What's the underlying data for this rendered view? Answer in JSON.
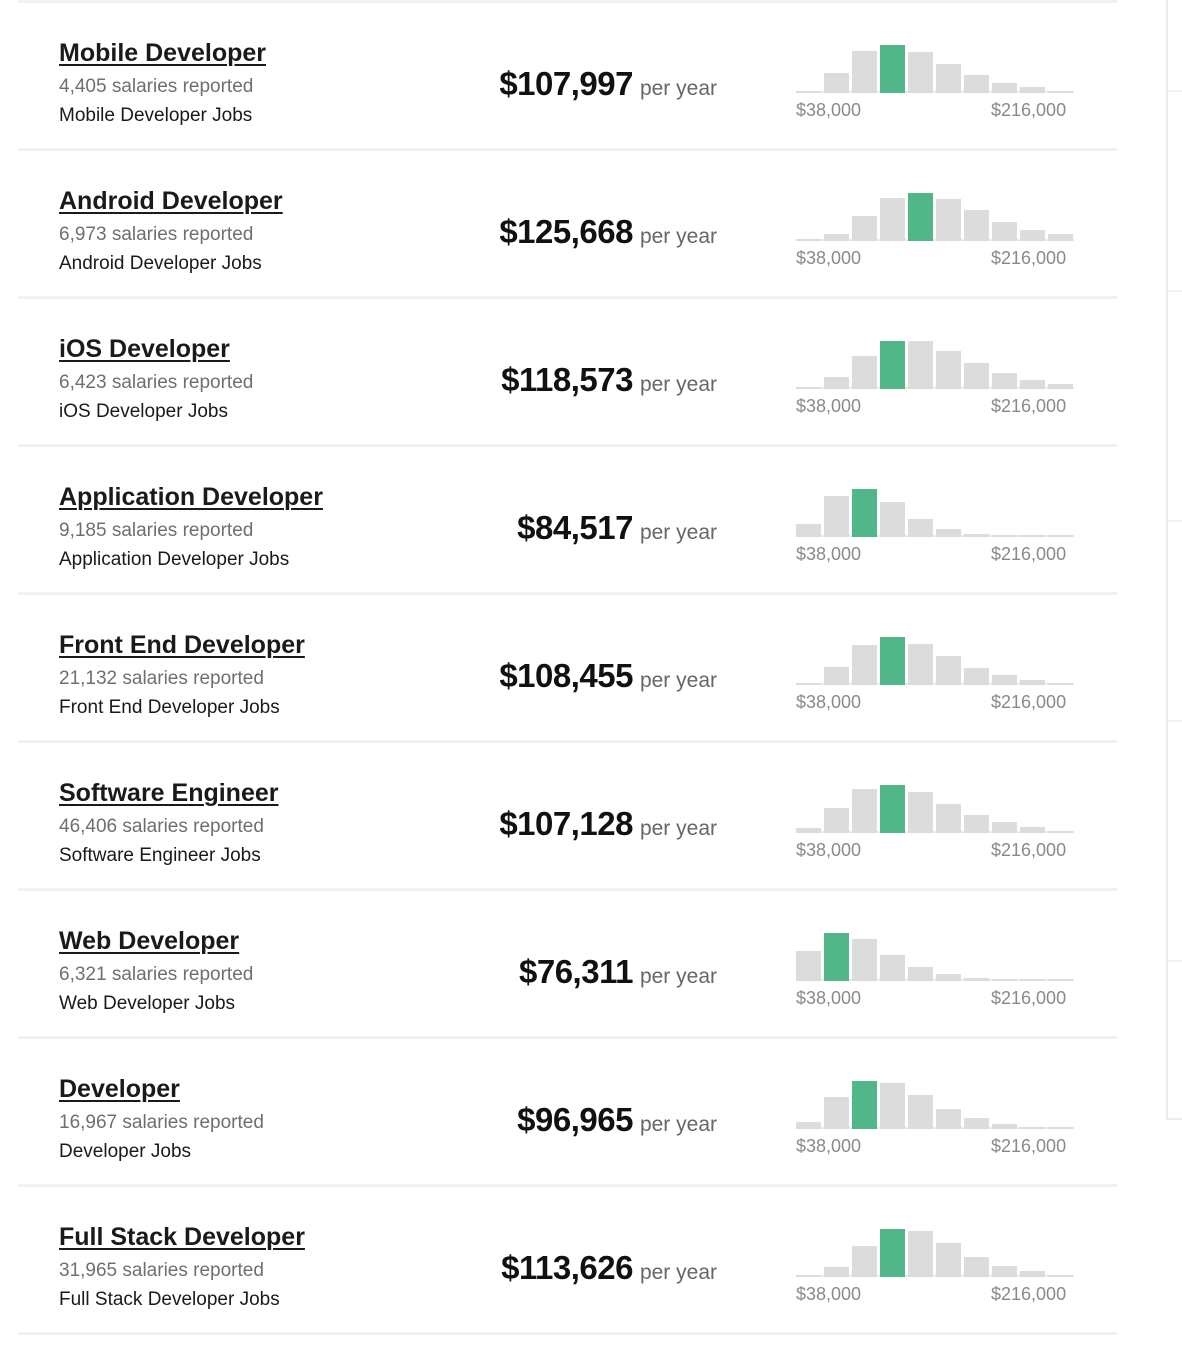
{
  "per_label": "per year",
  "axis_min_label": "$38,000",
  "axis_max_label": "$216,000",
  "colors": {
    "highlight": "#52b788",
    "bar": "#dcdcdc"
  },
  "rows": [
    {
      "title": "Mobile Developer",
      "count": "4,405 salaries reported",
      "jobs": "Mobile Developer Jobs",
      "salary": "$107,997",
      "bars": [
        0.05,
        0.42,
        0.88,
        1.0,
        0.85,
        0.6,
        0.38,
        0.2,
        0.12,
        0.04
      ],
      "highlight": 3
    },
    {
      "title": "Android Developer",
      "count": "6,973 salaries reported",
      "jobs": "Android Developer Jobs",
      "salary": "$125,668",
      "bars": [
        0.04,
        0.14,
        0.52,
        0.9,
        1.0,
        0.88,
        0.64,
        0.4,
        0.23,
        0.14
      ],
      "highlight": 4
    },
    {
      "title": "iOS Developer",
      "count": "6,423 salaries reported",
      "jobs": "iOS Developer Jobs",
      "salary": "$118,573",
      "bars": [
        0.04,
        0.24,
        0.68,
        1.0,
        1.0,
        0.8,
        0.54,
        0.34,
        0.18,
        0.1
      ],
      "highlight": 3
    },
    {
      "title": "Application Developer",
      "count": "9,185 salaries reported",
      "jobs": "Application Developer Jobs",
      "salary": "$84,517",
      "bars": [
        0.27,
        0.85,
        1.0,
        0.72,
        0.38,
        0.16,
        0.06,
        0.03,
        0.02,
        0.0
      ],
      "highlight": 2
    },
    {
      "title": "Front End Developer",
      "count": "21,132 salaries reported",
      "jobs": "Front End Developer Jobs",
      "salary": "$108,455",
      "bars": [
        0.05,
        0.38,
        0.84,
        1.0,
        0.86,
        0.6,
        0.36,
        0.2,
        0.1,
        0.04
      ],
      "highlight": 3
    },
    {
      "title": "Software Engineer",
      "count": "46,406 salaries reported",
      "jobs": "Software Engineer Jobs",
      "salary": "$107,128",
      "bars": [
        0.1,
        0.52,
        0.92,
        1.0,
        0.85,
        0.6,
        0.38,
        0.22,
        0.12,
        0.05
      ],
      "highlight": 3
    },
    {
      "title": "Web Developer",
      "count": "6,321 salaries reported",
      "jobs": "Web Developer Jobs",
      "salary": "$76,311",
      "bars": [
        0.62,
        1.0,
        0.88,
        0.55,
        0.3,
        0.14,
        0.06,
        0.03,
        0.02,
        0.0
      ],
      "highlight": 1
    },
    {
      "title": "Developer",
      "count": "16,967 salaries reported",
      "jobs": "Developer Jobs",
      "salary": "$96,965",
      "bars": [
        0.15,
        0.66,
        1.0,
        0.95,
        0.7,
        0.42,
        0.22,
        0.1,
        0.05,
        0.02
      ],
      "highlight": 2
    },
    {
      "title": "Full Stack Developer",
      "count": "31,965 salaries reported",
      "jobs": "Full Stack Developer Jobs",
      "salary": "$113,626",
      "bars": [
        0.05,
        0.2,
        0.65,
        1.0,
        0.95,
        0.7,
        0.42,
        0.22,
        0.12,
        0.04
      ],
      "highlight": 3
    }
  ]
}
